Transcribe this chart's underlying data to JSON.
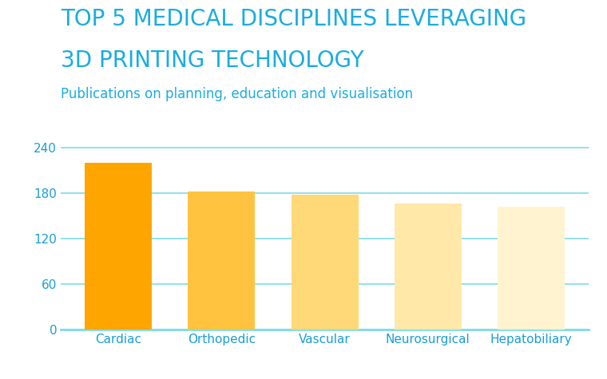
{
  "title_line1": "TOP 5 MEDICAL DISCIPLINES LEVERAGING",
  "title_line2": "3D PRINTING TECHNOLOGY",
  "subtitle": "Publications on planning, education and visualisation",
  "categories": [
    "Cardiac",
    "Orthopedic",
    "Vascular",
    "Neurosurgical",
    "Hepatobiliary"
  ],
  "values": [
    220,
    182,
    178,
    167,
    162
  ],
  "bar_colors": [
    "#FFA500",
    "#FFC340",
    "#FFD878",
    "#FFE8A8",
    "#FFF3D0"
  ],
  "title_color": "#1AACE0",
  "subtitle_color": "#1AACE0",
  "label_color": "#1A9ED4",
  "grid_color": "#7DDDE8",
  "axis_color": "#7DDDE8",
  "background_color": "#FFFFFF",
  "ylim": [
    0,
    260
  ],
  "yticks": [
    0,
    60,
    120,
    180,
    240
  ],
  "title_fontsize": 20,
  "subtitle_fontsize": 12,
  "tick_fontsize": 11,
  "xlabel_fontsize": 11
}
